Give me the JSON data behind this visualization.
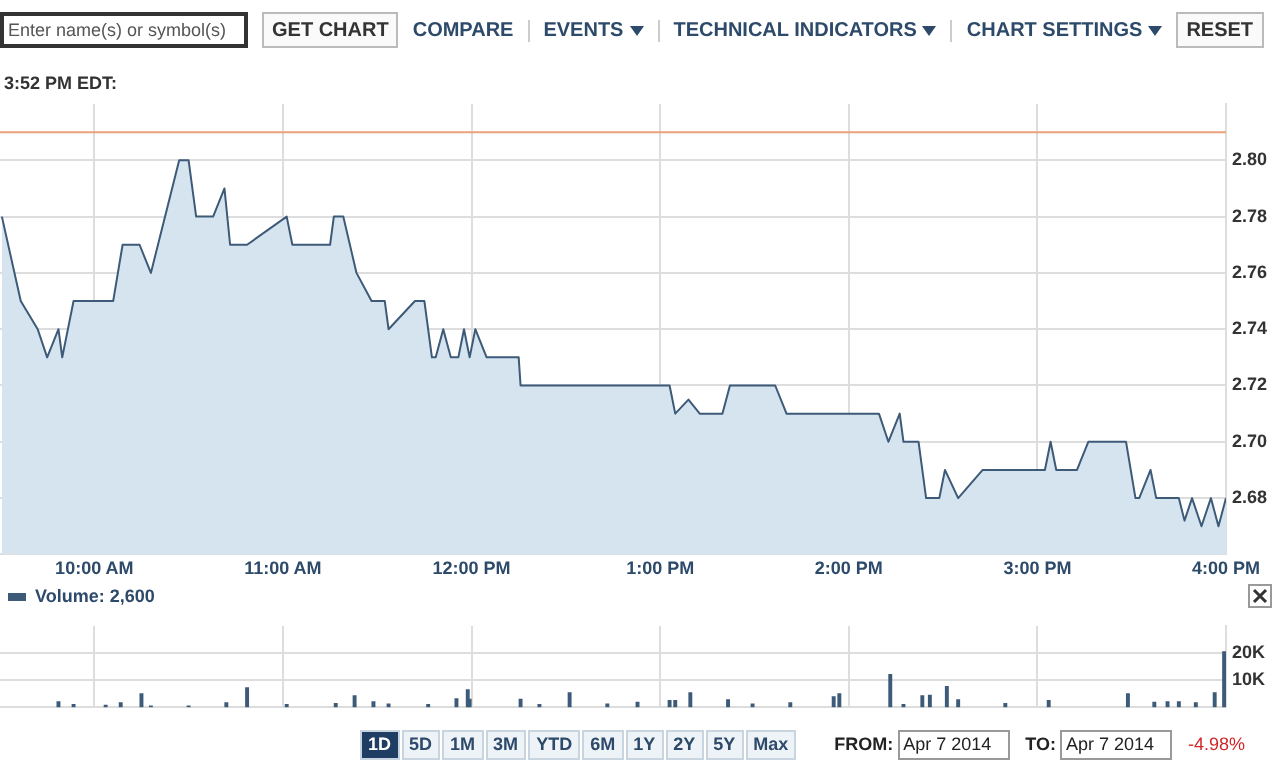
{
  "chart_data": [
    {
      "type": "other",
      "annotations": [
        "Enter name(s) or symbol(s)",
        "GET CHART",
        "COMPARE",
        "EVENTS",
        "TECHNICAL INDICATORS",
        "CHART SETTINGS",
        "RESET"
      ]
    },
    {
      "type": "area",
      "annotations": [
        "3:52 PM EDT:"
      ],
      "xlim": [
        9.5,
        16.0
      ],
      "ylim": [
        2.66,
        2.82
      ],
      "xticks": [
        {
          "value": 10,
          "label": "10:00 AM"
        },
        {
          "value": 11,
          "label": "11:00 AM"
        },
        {
          "value": 12,
          "label": "12:00 PM"
        },
        {
          "value": 13,
          "label": "1:00 PM"
        },
        {
          "value": 14,
          "label": "2:00 PM"
        },
        {
          "value": 15,
          "label": "3:00 PM"
        },
        {
          "value": 16,
          "label": "4:00 PM"
        }
      ],
      "yticks": [
        2.68,
        {
          "value": 2.7,
          "label": "2.70"
        },
        2.72,
        2.74,
        2.76,
        2.78,
        {
          "value": 2.8,
          "label": "2.80"
        }
      ],
      "grid": true,
      "legend": false,
      "marker": "none",
      "line_style": "solid",
      "ref_lines": [
        {
          "axis": "y",
          "value": 2.81,
          "color": "#e9a27a"
        }
      ],
      "series": [
        {
          "color": "#3d5a78",
          "x": [
            9.51,
            9.61,
            9.7,
            9.75,
            9.81,
            9.83,
            9.89,
            10.1,
            10.15,
            10.24,
            10.3,
            10.45,
            10.5,
            10.54,
            10.63,
            10.69,
            10.72,
            10.81,
            11.02,
            11.05,
            11.25,
            11.27,
            11.32,
            11.39,
            11.47,
            11.54,
            11.56,
            11.7,
            11.75,
            11.79,
            11.81,
            11.85,
            11.89,
            11.93,
            11.96,
            11.99,
            12.02,
            12.08,
            12.25,
            12.26,
            13.05,
            13.08,
            13.15,
            13.21,
            13.33,
            13.37,
            13.61,
            13.67,
            14.16,
            14.21,
            14.27,
            14.29,
            14.37,
            14.41,
            14.48,
            14.51,
            14.58,
            14.71,
            15.04,
            15.07,
            15.1,
            15.21,
            15.27,
            15.47,
            15.52,
            15.54,
            15.6,
            15.63,
            15.75,
            15.78,
            15.82,
            15.87,
            15.92,
            15.96,
            16.0
          ],
          "values": [
            2.78,
            2.75,
            2.74,
            2.73,
            2.74,
            2.73,
            2.75,
            2.75,
            2.77,
            2.77,
            2.76,
            2.8,
            2.8,
            2.78,
            2.78,
            2.79,
            2.77,
            2.77,
            2.78,
            2.77,
            2.77,
            2.78,
            2.78,
            2.76,
            2.75,
            2.75,
            2.74,
            2.75,
            2.75,
            2.73,
            2.73,
            2.74,
            2.73,
            2.73,
            2.74,
            2.73,
            2.74,
            2.73,
            2.73,
            2.72,
            2.72,
            2.71,
            2.715,
            2.71,
            2.71,
            2.72,
            2.72,
            2.71,
            2.71,
            2.7,
            2.71,
            2.7,
            2.7,
            2.68,
            2.68,
            2.69,
            2.68,
            2.69,
            2.69,
            2.7,
            2.69,
            2.69,
            2.7,
            2.7,
            2.68,
            2.68,
            2.69,
            2.68,
            2.68,
            2.672,
            2.68,
            2.67,
            2.68,
            2.67,
            2.68
          ]
        }
      ]
    },
    {
      "type": "bar",
      "xlim": [
        9.5,
        16.0
      ],
      "ylim": [
        0,
        30000
      ],
      "xticks": [
        {
          "value": 10,
          "label": null
        },
        {
          "value": 11,
          "label": null
        },
        {
          "value": 12,
          "label": null
        },
        {
          "value": 13,
          "label": null
        },
        {
          "value": 14,
          "label": null
        },
        {
          "value": 15,
          "label": null
        },
        {
          "value": 16,
          "label": null
        }
      ],
      "yticks": [
        {
          "value": 10000,
          "label": "10K"
        },
        {
          "value": 20000,
          "label": "20K"
        }
      ],
      "tick_labels": "y",
      "grid": true,
      "legend": "top left",
      "series": [
        {
          "name": "Volume: 2,600",
          "color": "#3d5a78",
          "x": [
            9.81,
            9.89,
            10.06,
            10.14,
            10.25,
            10.3,
            10.5,
            10.7,
            10.81,
            11.02,
            11.28,
            11.38,
            11.48,
            11.56,
            11.77,
            11.92,
            11.98,
            11.99,
            12.26,
            12.36,
            12.52,
            12.72,
            12.88,
            13.05,
            13.08,
            13.16,
            13.36,
            13.49,
            13.69,
            13.92,
            13.95,
            14.22,
            14.29,
            14.39,
            14.43,
            14.52,
            14.58,
            14.83,
            15.06,
            15.48,
            15.62,
            15.69,
            15.75,
            15.84,
            15.94,
            15.99
          ],
          "values": [
            2000,
            900,
            700,
            1600,
            4900,
            400,
            400,
            1600,
            7100,
            900,
            1300,
            4200,
            2000,
            1100,
            900,
            3100,
            6400,
            2900,
            2900,
            900,
            5300,
            1100,
            1800,
            2400,
            2400,
            5300,
            2700,
            1100,
            1600,
            3800,
            4900,
            12000,
            900,
            4200,
            4400,
            7600,
            2700,
            1300,
            2400,
            4900,
            1800,
            2000,
            2000,
            1600,
            5300,
            20400
          ]
        }
      ]
    },
    {
      "type": "other",
      "annotations": [
        "1D",
        "5D",
        "1M",
        "3M",
        "YTD",
        "6M",
        "1Y",
        "2Y",
        "5Y",
        "Max",
        "FROM:",
        "Apr 7 2014",
        "TO:",
        "Apr 7 2014",
        "-4.98%"
      ]
    }
  ]
}
